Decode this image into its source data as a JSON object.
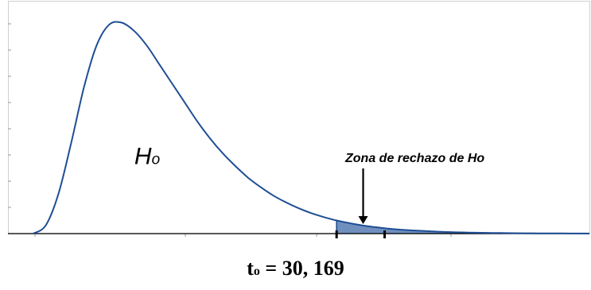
{
  "chart_data": {
    "type": "area",
    "title": "",
    "xlabel": "",
    "ylabel": "",
    "distribution": "right-skewed density curve",
    "x": [
      0,
      0.5,
      1,
      1.5,
      2,
      2.5,
      3,
      3.5,
      4,
      4.5,
      5,
      5.5,
      6,
      6.5,
      7,
      7.5,
      8,
      8.5,
      9,
      9.5,
      10,
      10.5,
      11,
      11.5,
      12,
      12.5,
      13,
      13.5,
      14,
      14.5,
      15,
      15.5,
      16,
      16.5,
      17,
      17.5,
      18,
      18.5,
      19,
      19.5,
      20,
      20.5,
      21,
      21.5,
      22
    ],
    "y": [
      0,
      0.4,
      1.9,
      4.3,
      6.9,
      8.9,
      9.9,
      10.0,
      9.6,
      8.9,
      8.0,
      7.1,
      6.2,
      5.3,
      4.5,
      3.8,
      3.2,
      2.65,
      2.2,
      1.8,
      1.48,
      1.2,
      0.97,
      0.78,
      0.62,
      0.5,
      0.39,
      0.31,
      0.24,
      0.19,
      0.15,
      0.12,
      0.09,
      0.07,
      0.055,
      0.043,
      0.033,
      0.026,
      0.02,
      0.016,
      0.012,
      0.009,
      0.007,
      0.005,
      0.004
    ],
    "xlim": [
      -1,
      22
    ],
    "ylim": [
      0,
      11
    ],
    "grid": false,
    "critical_x": 12,
    "marked_x": 13.9,
    "line_color": "#1f4e94",
    "fill_color": "#6f8fbf",
    "region_label": "Ho",
    "region_label_x": 4,
    "region_label_y": 3.3,
    "annotations": [
      {
        "text": "Zona de rechazo de Ho",
        "x": 13.05,
        "y": 3.45,
        "arrow_to_y": 0.45
      }
    ]
  },
  "footer": {
    "t_main": "t",
    "t_sub": "o",
    "t_rest": " = 30, 169"
  }
}
